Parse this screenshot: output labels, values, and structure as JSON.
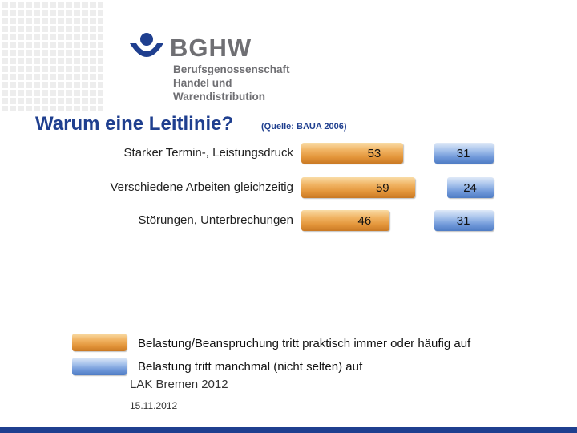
{
  "logo": {
    "name": "BGHW",
    "subtitle_lines": [
      "Berufsgenossenschaft",
      "Handel und",
      "Warendistribution"
    ]
  },
  "title": "Warum eine Leitlinie?",
  "source": "(Quelle: BAUA 2006)",
  "colors": {
    "series_orange": "#e3953a",
    "series_blue": "#6f98d9",
    "title": "#1f3f8f"
  },
  "chart_data": {
    "type": "bar",
    "orientation": "horizontal",
    "categories": [
      "Starker Termin-, Leistungsdruck",
      "Verschiedene Arbeiten gleichzeitig",
      "Störungen, Unterbrechungen"
    ],
    "series": [
      {
        "name": "Belastung/Beanspruchung tritt praktisch immer oder häufig auf",
        "values": [
          53,
          59,
          46
        ]
      },
      {
        "name": "Belastung tritt manchmal (nicht selten) auf",
        "values": [
          31,
          24,
          31
        ]
      }
    ],
    "legend_position": "bottom",
    "grid": false
  },
  "footer": {
    "event": "LAK Bremen 2012",
    "date": "15.11.2012"
  }
}
